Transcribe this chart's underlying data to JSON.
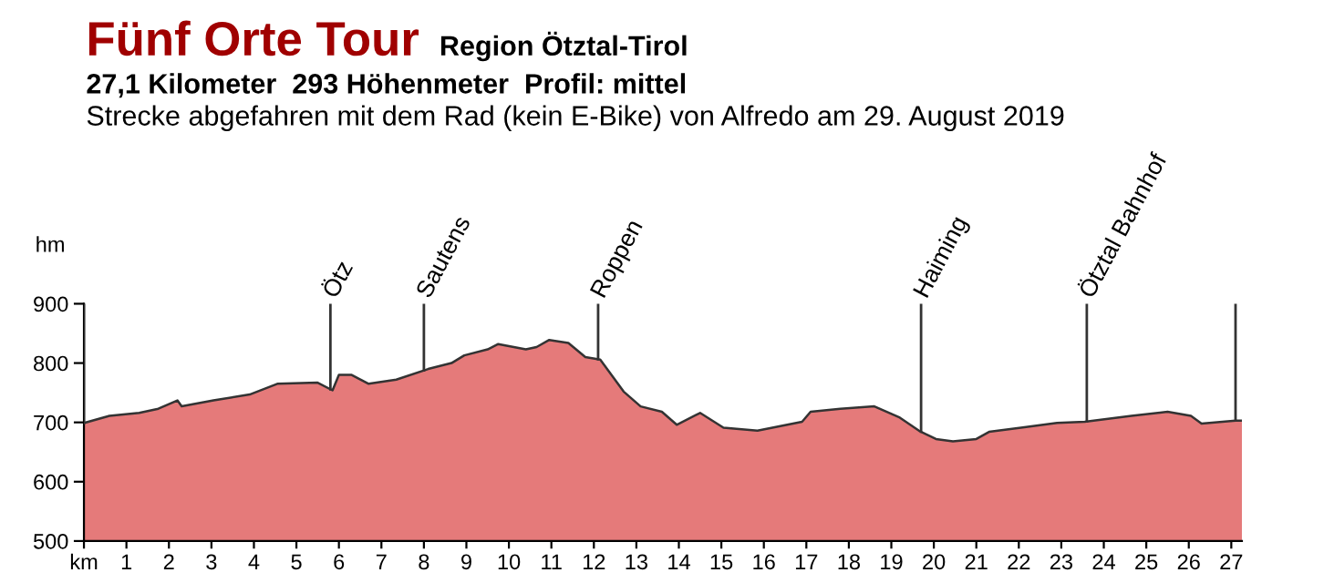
{
  "chart_data": {
    "type": "area",
    "title": "Fünf Orte Tour",
    "subtitle": "Region Ötztal-Tirol",
    "annotations": [
      "27,1 Kilometer  293 Höhenmeter  Profil: mittel",
      "Strecke abgefahren mit dem Rad (kein E-Bike) von Alfredo am 29. August 2019"
    ],
    "ylabel": "hm",
    "series": [
      {
        "color": "#e57a7a",
        "x": [
          0,
          0.6,
          1.3,
          1.75,
          2.2,
          2.3,
          3.05,
          3.9,
          4.55,
          5.5,
          5.85,
          6.0,
          6.3,
          6.7,
          7.35,
          8.1,
          8.65,
          8.95,
          9.5,
          9.75,
          10.4,
          10.65,
          10.95,
          11.4,
          11.8,
          12.15,
          12.7,
          13.1,
          13.6,
          13.95,
          14.5,
          15.05,
          15.85,
          16.9,
          17.1,
          17.8,
          18.6,
          19.2,
          19.65,
          20.05,
          20.45,
          21.0,
          21.3,
          22.05,
          22.9,
          23.55,
          24.65,
          25.5,
          26.05,
          26.3,
          27.1,
          27.25
        ],
        "values": [
          699,
          711,
          716,
          723,
          737,
          727,
          737,
          747,
          765,
          767,
          754,
          780,
          780,
          765,
          772,
          790,
          800,
          813,
          823,
          832,
          823,
          827,
          839,
          834,
          810,
          806,
          752,
          727,
          718,
          696,
          716,
          691,
          686,
          701,
          718,
          723,
          727,
          708,
          686,
          672,
          668,
          672,
          684,
          691,
          699,
          701,
          711,
          718,
          711,
          698,
          703,
          703
        ]
      }
    ],
    "xlim": [
      0,
      27.25
    ],
    "ylim": [
      500,
      900
    ],
    "xticks": [
      {
        "value": 0,
        "label": "km"
      },
      1,
      2,
      3,
      4,
      5,
      6,
      7,
      8,
      9,
      10,
      11,
      12,
      13,
      14,
      15,
      16,
      17,
      18,
      19,
      20,
      21,
      22,
      23,
      24,
      25,
      26,
      27
    ],
    "yticks": [
      500,
      600,
      700,
      800,
      900
    ],
    "ref_lines": [
      {
        "axis": "x",
        "value": 0,
        "label": null
      },
      {
        "axis": "x",
        "value": 5.8,
        "label": "Ötz"
      },
      {
        "axis": "x",
        "value": 8.0,
        "label": "Sautens"
      },
      {
        "axis": "x",
        "value": 12.1,
        "label": "Roppen"
      },
      {
        "axis": "x",
        "value": 19.7,
        "label": "Haiming"
      },
      {
        "axis": "x",
        "value": 23.6,
        "label": "Ötztal Bahnhof"
      },
      {
        "axis": "x",
        "value": 27.1,
        "label": null
      }
    ],
    "grid": false
  }
}
